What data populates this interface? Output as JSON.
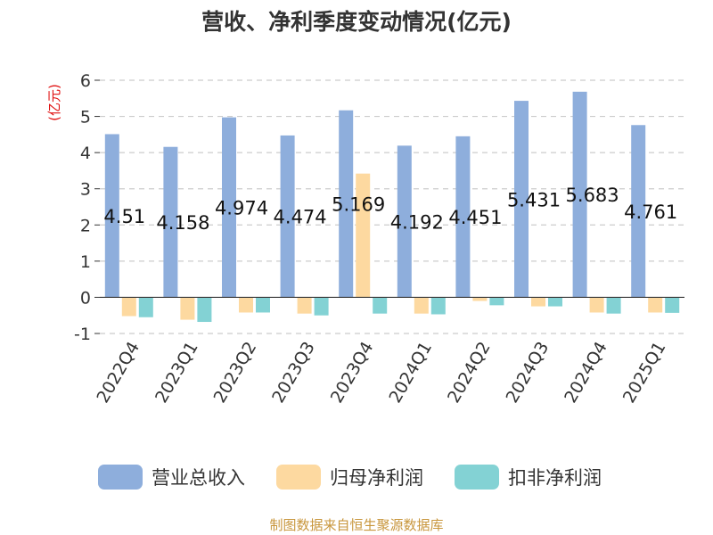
{
  "chart_data": {
    "type": "bar",
    "title": "营收、净利季度变动情况(亿元)",
    "ylabel": "(亿元)",
    "categories": [
      "2022Q4",
      "2023Q1",
      "2023Q2",
      "2023Q3",
      "2023Q4",
      "2024Q1",
      "2024Q2",
      "2024Q3",
      "2024Q4",
      "2025Q1"
    ],
    "series": [
      {
        "name": "营业总收入",
        "color": "#8eaedc",
        "values": [
          4.51,
          4.158,
          4.974,
          4.474,
          5.169,
          4.192,
          4.451,
          5.431,
          5.683,
          4.761
        ],
        "labels": [
          "4.51",
          "4.158",
          "4.974",
          "4.474",
          "5.169",
          "4.192",
          "4.451",
          "5.431",
          "5.683",
          "4.761"
        ]
      },
      {
        "name": "归母净利润",
        "color": "#fdd9a0",
        "values": [
          -0.52,
          -0.62,
          -0.42,
          -0.45,
          3.42,
          -0.45,
          -0.1,
          -0.25,
          -0.42,
          -0.42
        ]
      },
      {
        "name": "扣非净利润",
        "color": "#83d2d4",
        "values": [
          -0.55,
          -0.68,
          -0.42,
          -0.5,
          -0.45,
          -0.47,
          -0.22,
          -0.25,
          -0.45,
          -0.43
        ]
      }
    ],
    "yticks": [
      6,
      5,
      4,
      3,
      2,
      1,
      0,
      -1
    ],
    "ylim": [
      -1,
      6
    ],
    "grid": true,
    "legend": "bottom",
    "source": "制图数据来自恒生聚源数据库"
  }
}
